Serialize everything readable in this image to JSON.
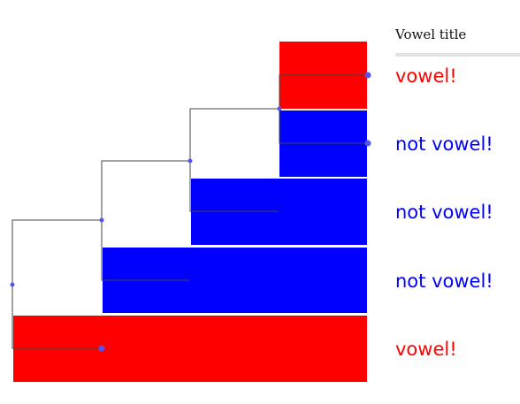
{
  "legend": {
    "title": "Vowel title"
  },
  "labels": [
    {
      "text": "vowel!",
      "color": "#ff0000"
    },
    {
      "text": "not vowel!",
      "color": "#0000ff"
    },
    {
      "text": "not vowel!",
      "color": "#0000ff"
    },
    {
      "text": "not vowel!",
      "color": "#0000ff"
    },
    {
      "text": "vowel!",
      "color": "#ff0000"
    }
  ],
  "colors": {
    "vowel": "#ff0000",
    "not_vowel": "#0000ff",
    "tree_line": "#444444",
    "node_dot": "#5555ee",
    "rule": "#e3e3e3"
  }
}
